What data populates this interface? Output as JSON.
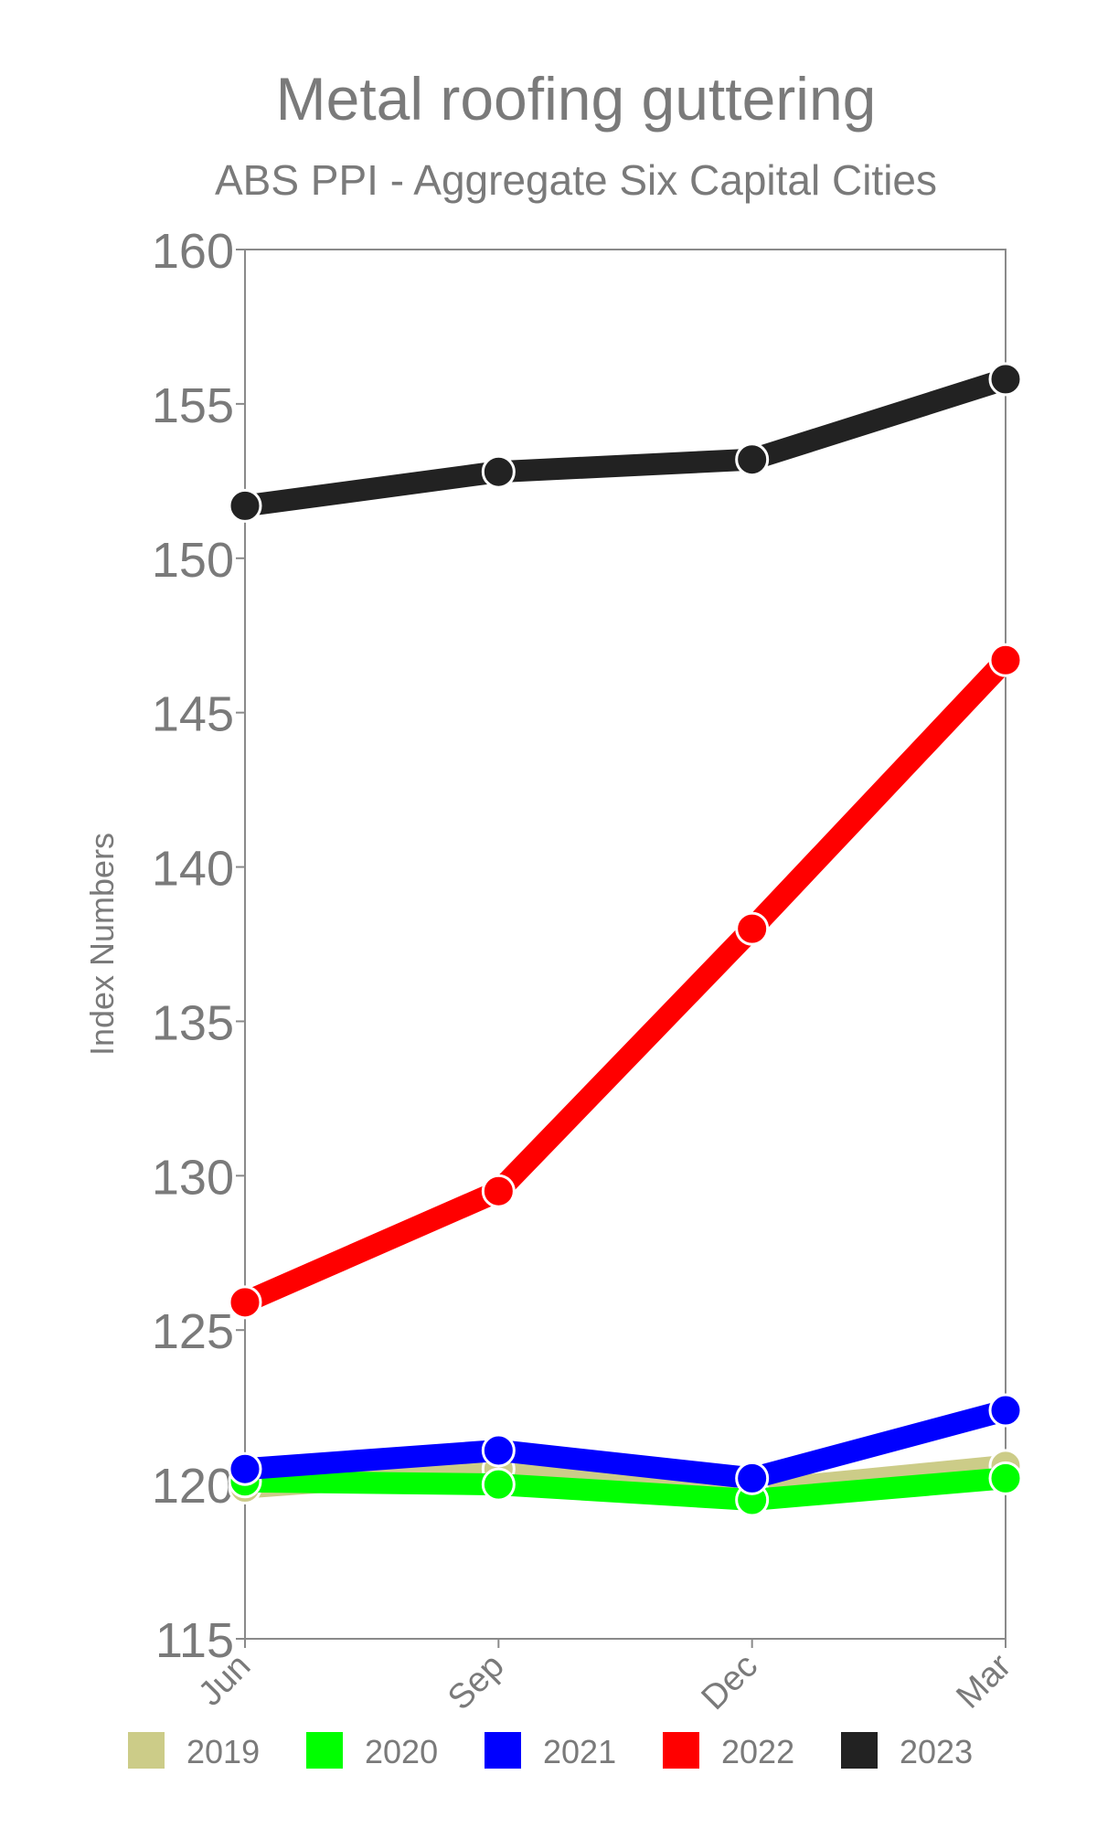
{
  "chart_data": {
    "type": "line",
    "title": "Metal roofing guttering",
    "subtitle": "ABS PPI - Aggregate Six Capital Cities",
    "ylabel": "Index Numbers",
    "xlabel": "",
    "categories": [
      "Jun",
      "Sep",
      "Dec",
      "Mar"
    ],
    "ylim": [
      115,
      160
    ],
    "yticks": [
      "115",
      "120",
      "125",
      "130",
      "135",
      "140",
      "145",
      "150",
      "155",
      "160"
    ],
    "grid": false,
    "legend_position": "bottom",
    "series": [
      {
        "name": "2019",
        "color": "#cccc88",
        "values": [
          119.9,
          120.5,
          119.8,
          120.6
        ]
      },
      {
        "name": "2020",
        "color": "#00ff00",
        "values": [
          120.1,
          120.0,
          119.5,
          120.2
        ]
      },
      {
        "name": "2021",
        "color": "#0000ff",
        "values": [
          120.5,
          121.1,
          120.2,
          122.4
        ]
      },
      {
        "name": "2022",
        "color": "#ff0000",
        "values": [
          125.9,
          129.5,
          138.0,
          146.7
        ]
      },
      {
        "name": "2023",
        "color": "#222222",
        "values": [
          151.7,
          152.8,
          153.2,
          155.8
        ]
      }
    ]
  }
}
